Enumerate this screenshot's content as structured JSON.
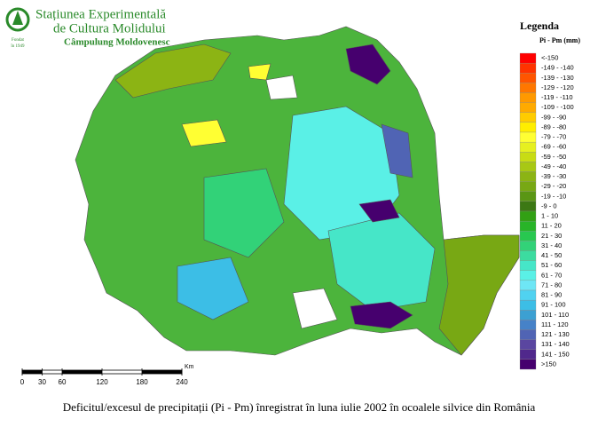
{
  "header": {
    "title_lines": [
      "Stațiunea Experimentală",
      "de Cultura Molidului"
    ],
    "subtitle": "Câmpulung Moldovenesc",
    "logo_text": [
      "Fondat",
      "în 1949"
    ]
  },
  "legend": {
    "title": "Legenda",
    "subtitle": "Pi - Pm (mm)",
    "items": [
      {
        "label": "<-150",
        "color": "#ff0000"
      },
      {
        "label": "-149 - -140",
        "color": "#ff3300"
      },
      {
        "label": "-139 - -130",
        "color": "#ff5500"
      },
      {
        "label": "-129 - -120",
        "color": "#ff7700"
      },
      {
        "label": "-119 - -110",
        "color": "#ff9900"
      },
      {
        "label": "-109 - -100",
        "color": "#ffaa00"
      },
      {
        "label": "-99 - -90",
        "color": "#ffcc00"
      },
      {
        "label": "-89 - -80",
        "color": "#ffee00"
      },
      {
        "label": "-79 - -70",
        "color": "#ffff33"
      },
      {
        "label": "-69 - -60",
        "color": "#e6f020"
      },
      {
        "label": "-59 - -50",
        "color": "#c8dc14"
      },
      {
        "label": "-49 - -40",
        "color": "#a8c814"
      },
      {
        "label": "-39 - -30",
        "color": "#8cb414"
      },
      {
        "label": "-29 - -20",
        "color": "#78a814"
      },
      {
        "label": "-19 - -10",
        "color": "#5a9614"
      },
      {
        "label": "-9 - 0",
        "color": "#3c7814"
      },
      {
        "label": "1 - 10",
        "color": "#32a014"
      },
      {
        "label": "11 - 20",
        "color": "#28b428"
      },
      {
        "label": "21 - 30",
        "color": "#28c850"
      },
      {
        "label": "31 - 40",
        "color": "#32d278"
      },
      {
        "label": "41 - 50",
        "color": "#3cdca0"
      },
      {
        "label": "51 - 60",
        "color": "#46e6c8"
      },
      {
        "label": "61 - 70",
        "color": "#5af0e6"
      },
      {
        "label": "71 - 80",
        "color": "#6ee6f5"
      },
      {
        "label": "81 - 90",
        "color": "#50d2f0"
      },
      {
        "label": "91 - 100",
        "color": "#3cbee6"
      },
      {
        "label": "101 - 110",
        "color": "#3ca0d2"
      },
      {
        "label": "111 - 120",
        "color": "#4682c8"
      },
      {
        "label": "121 - 130",
        "color": "#5064b4"
      },
      {
        "label": "131 - 140",
        "color": "#5a46a0"
      },
      {
        "label": "141 - 150",
        "color": "#50288c"
      },
      {
        "label": ">150",
        "color": "#46006e"
      }
    ]
  },
  "scale": {
    "ticks": [
      0,
      30,
      60,
      120,
      180,
      240
    ],
    "unit": "Km"
  },
  "caption": "Deficitul/excesul de precipitații (Pi - Pm) înregistrat în luna iulie 2002 în ocoalele silvice din România"
}
